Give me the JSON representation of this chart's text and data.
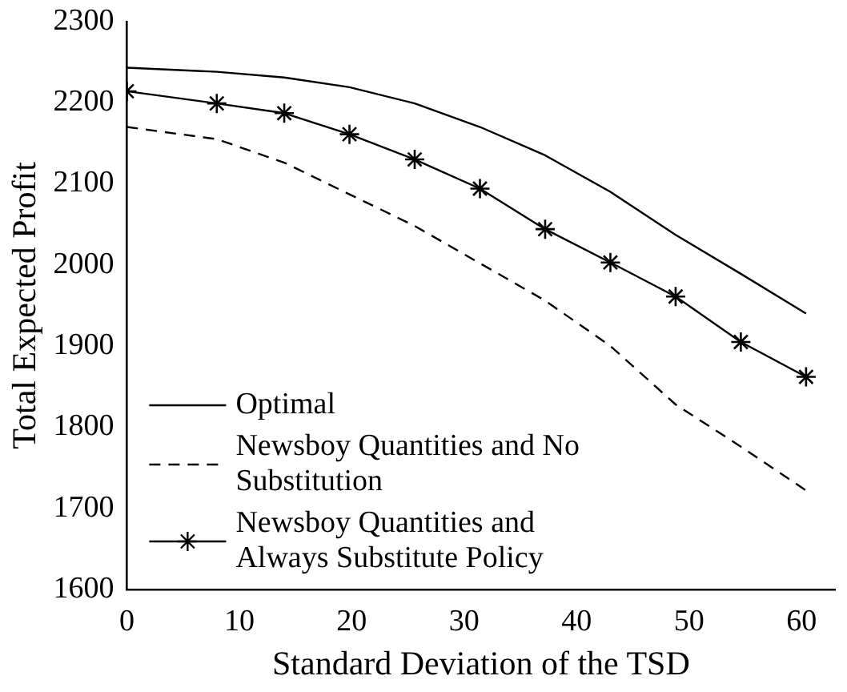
{
  "chart_data": {
    "type": "line",
    "xlabel": "Standard Deviation of the TSD",
    "ylabel": "Total Expected Profit",
    "xlim": [
      0,
      63
    ],
    "xticks": [
      0,
      10,
      20,
      30,
      40,
      50,
      60
    ],
    "ylim": [
      1600,
      2300
    ],
    "yticks": [
      1600,
      1700,
      1800,
      1900,
      2000,
      2100,
      2200,
      2300
    ],
    "grid": false,
    "legend": "bottom left",
    "x": [
      0,
      8,
      14,
      19.8,
      25.6,
      31.4,
      37.2,
      43,
      48.8,
      54.6,
      60.4
    ],
    "series": [
      {
        "name": "Optimal",
        "color": "#000000",
        "line_style": "solid",
        "marker": "none",
        "values": [
          2243,
          2238,
          2231,
          2219,
          2199,
          2170,
          2135,
          2090,
          2037,
          1989,
          1940
        ]
      },
      {
        "name": "Newsboy Quantities and No Substitution",
        "color": "#000000",
        "line_style": "dashed",
        "marker": "none",
        "values": [
          2170,
          2155,
          2126,
          2087,
          2048,
          2002,
          1956,
          1900,
          1828,
          1776,
          1722
        ]
      },
      {
        "name": "Newsboy Quantities and Always Substitute Policy",
        "color": "#000000",
        "line_style": "solid",
        "marker": "cross",
        "values": [
          2214,
          2199,
          2187,
          2161,
          2130,
          2094,
          2044,
          2003,
          1961,
          1905,
          1862
        ]
      }
    ]
  }
}
